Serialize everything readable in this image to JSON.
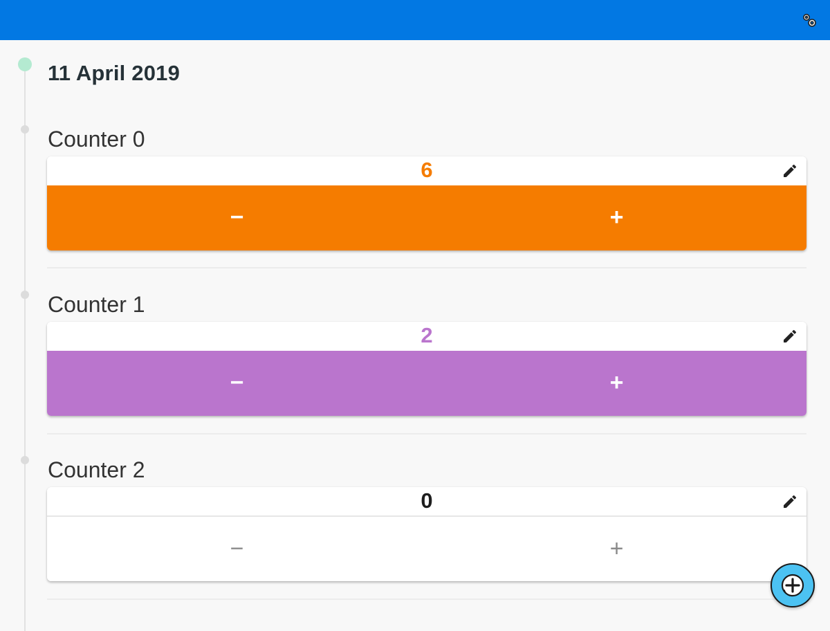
{
  "app": {
    "accent_color": "#0278e3",
    "settings_icon": "gear-icon"
  },
  "timeline": {
    "date": "11 April 2019"
  },
  "counters": [
    {
      "label": "Counter 0",
      "value": "6",
      "color": "#f57c00",
      "decrement": "−",
      "increment": "+"
    },
    {
      "label": "Counter 1",
      "value": "2",
      "color": "#ba75cd",
      "decrement": "−",
      "increment": "+"
    },
    {
      "label": "Counter 2",
      "value": "0",
      "color": "#ffffff",
      "decrement": "−",
      "increment": "+"
    }
  ],
  "fab": {
    "icon": "add-icon"
  }
}
